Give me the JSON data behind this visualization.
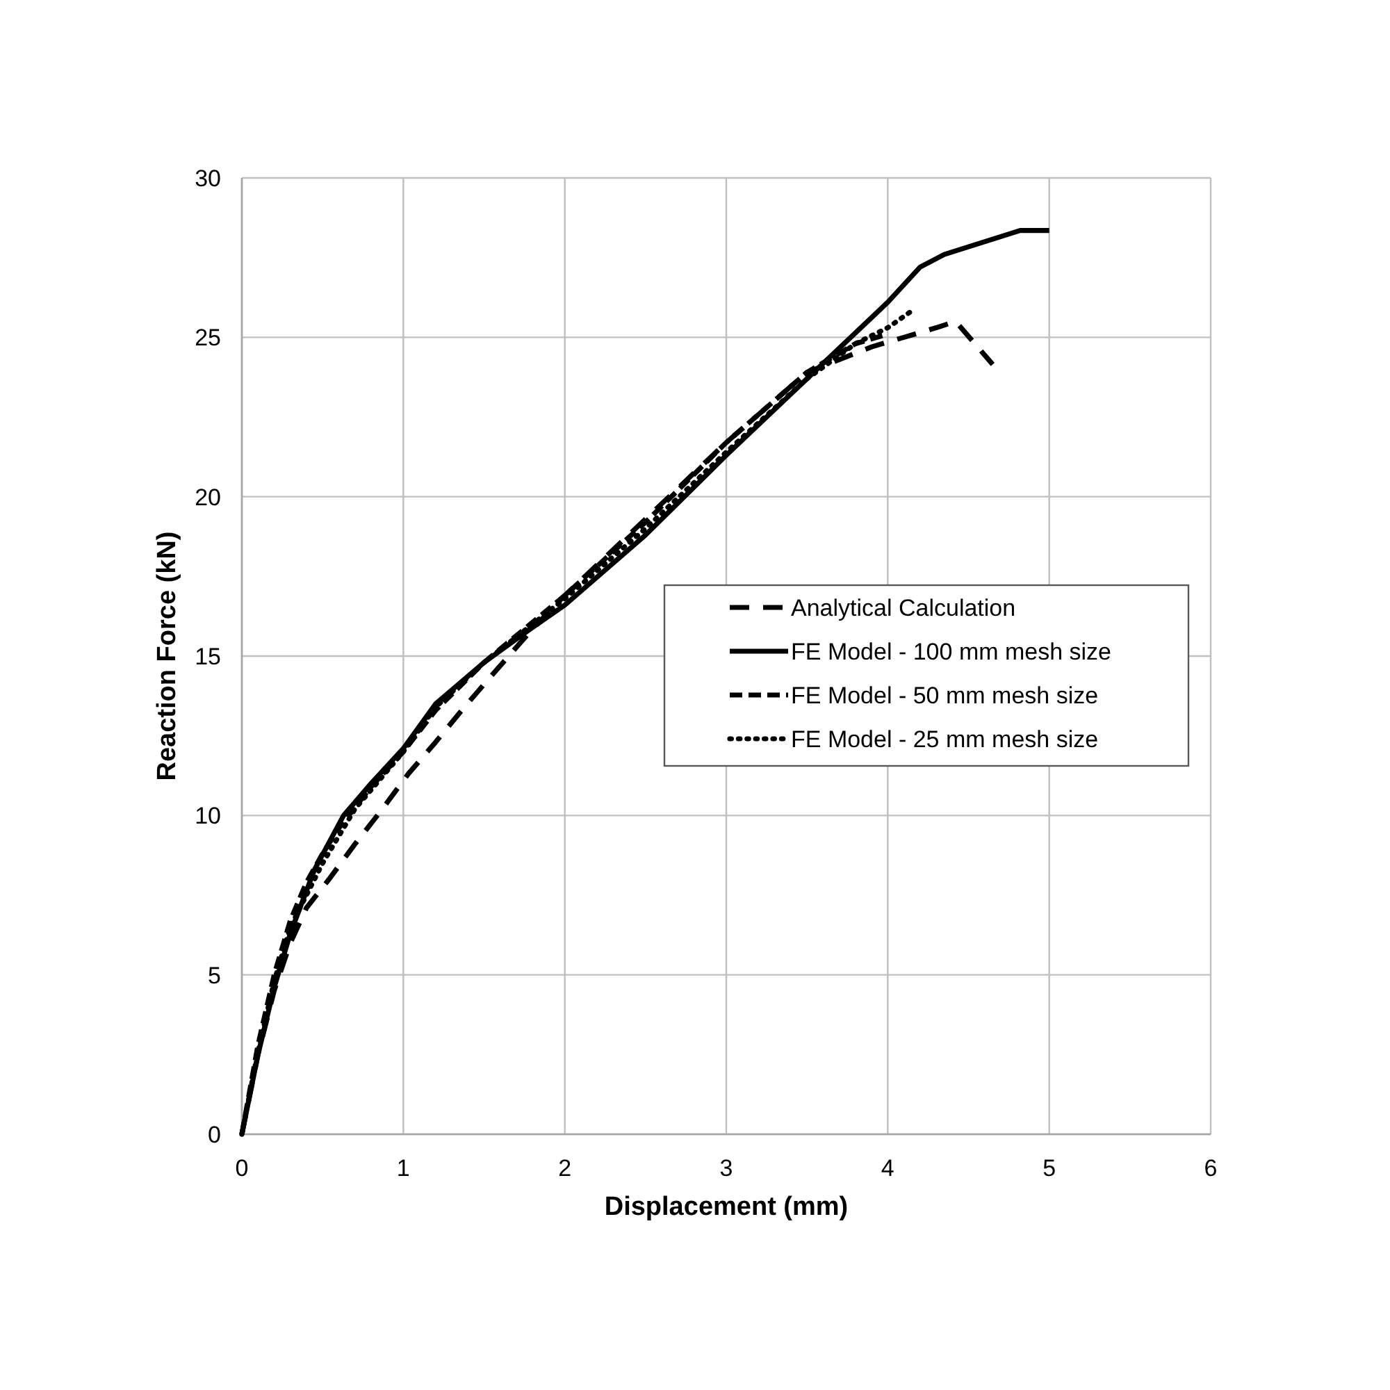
{
  "chart_data": {
    "type": "line",
    "xlabel": "Displacement (mm)",
    "ylabel": "Reaction Force (kN)",
    "xlim": [
      0,
      6
    ],
    "ylim": [
      0,
      30
    ],
    "xticks": [
      0,
      1,
      2,
      3,
      4,
      5,
      6
    ],
    "yticks": [
      0,
      5,
      10,
      15,
      20,
      25,
      30
    ],
    "grid": true,
    "legend": "right",
    "series": [
      {
        "name": "Analytical Calculation",
        "color": "#000000",
        "line_style": "dashed",
        "x": [
          0,
          0.1,
          0.2,
          0.3,
          0.4,
          0.54,
          0.7,
          0.87,
          1.03,
          1.2,
          1.37,
          1.54,
          1.73,
          1.92,
          2.0,
          2.5,
          3.0,
          3.5,
          3.9,
          4.1,
          4.3,
          4.42,
          4.65
        ],
        "values": [
          0,
          2.5,
          4.5,
          6.0,
          7.1,
          8.0,
          9.1,
          10.2,
          11.3,
          12.3,
          13.35,
          14.35,
          15.45,
          16.5,
          16.9,
          19.3,
          21.7,
          23.9,
          24.7,
          25.0,
          25.3,
          25.5,
          24.15
        ]
      },
      {
        "name": "FE Model - 100 mm mesh size",
        "color": "#000000",
        "line_style": "solid",
        "x": [
          0,
          0.1,
          0.2,
          0.3,
          0.45,
          0.63,
          0.8,
          1.0,
          1.2,
          1.5,
          1.8,
          2.0,
          2.5,
          3.0,
          3.5,
          4.0,
          4.2,
          4.35,
          4.82,
          5.0
        ],
        "values": [
          0,
          2.5,
          4.6,
          6.3,
          8.3,
          10.0,
          11.0,
          12.1,
          13.5,
          14.8,
          15.9,
          16.6,
          18.8,
          21.3,
          23.7,
          26.1,
          27.2,
          27.6,
          28.35,
          28.35
        ]
      },
      {
        "name": "FE Model - 50 mm mesh size",
        "color": "#000000",
        "line_style": "dashed",
        "x": [
          0,
          0.1,
          0.2,
          0.3,
          0.4,
          0.5,
          0.6,
          0.8,
          1.0,
          1.2,
          1.5,
          2.0,
          2.5,
          3.0,
          3.5,
          3.8,
          4.0
        ],
        "values": [
          0,
          2.8,
          5.0,
          6.7,
          7.9,
          8.8,
          9.6,
          10.9,
          12.0,
          13.3,
          14.8,
          16.9,
          19.2,
          21.7,
          23.9,
          24.8,
          25.1
        ]
      },
      {
        "name": "FE Model - 25 mm mesh size",
        "color": "#000000",
        "line_style": "dotted",
        "x": [
          0,
          0.1,
          0.2,
          0.3,
          0.5,
          0.7,
          1.0,
          1.2,
          1.5,
          2.0,
          2.5,
          3.0,
          3.5,
          3.8,
          4.0,
          4.14
        ],
        "values": [
          0,
          2.6,
          4.8,
          6.5,
          8.5,
          10.2,
          12.0,
          13.4,
          14.8,
          16.8,
          19.0,
          21.4,
          23.7,
          24.8,
          25.3,
          25.8
        ]
      }
    ]
  }
}
